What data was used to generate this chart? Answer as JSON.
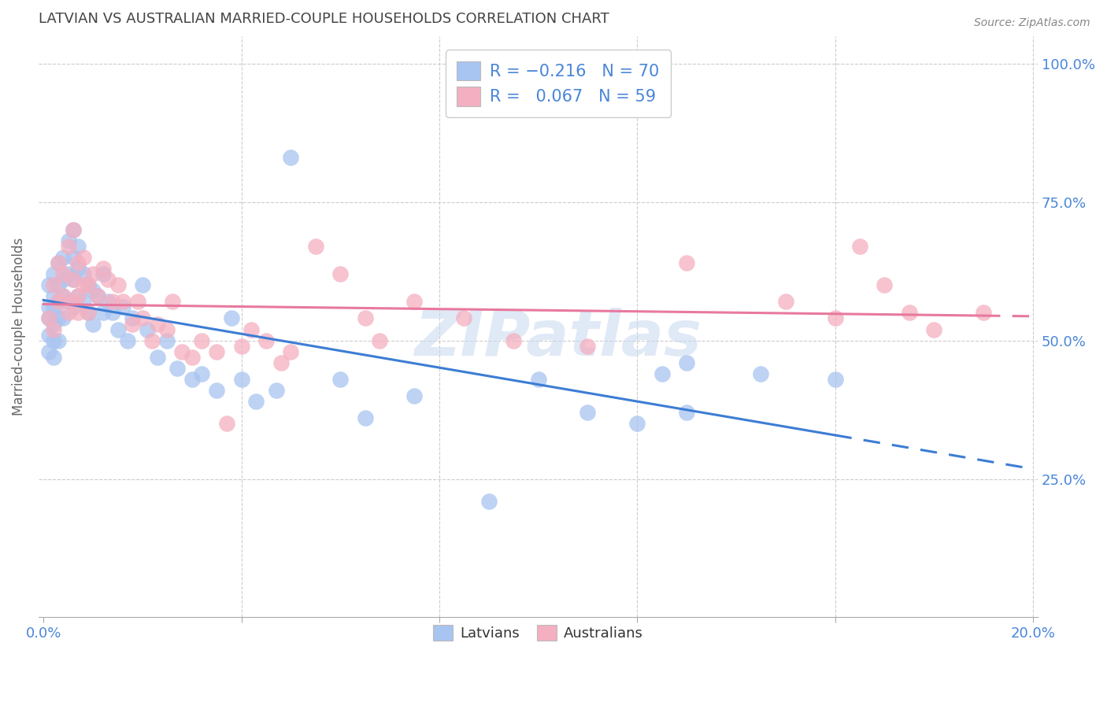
{
  "title": "LATVIAN VS AUSTRALIAN MARRIED-COUPLE HOUSEHOLDS CORRELATION CHART",
  "source": "Source: ZipAtlas.com",
  "ylabel": "Married-couple Households",
  "xlim": [
    0.0,
    0.2
  ],
  "ylim": [
    0.0,
    1.05
  ],
  "yticks": [
    0.0,
    0.25,
    0.5,
    0.75,
    1.0
  ],
  "xticks": [
    0.0,
    0.04,
    0.08,
    0.12,
    0.16,
    0.2
  ],
  "xtick_labels": [
    "0.0%",
    "",
    "",
    "",
    "",
    "20.0%"
  ],
  "ytick_labels_right": [
    "",
    "25.0%",
    "50.0%",
    "75.0%",
    "100.0%"
  ],
  "latvian_R": -0.216,
  "latvian_N": 70,
  "australian_R": 0.067,
  "australian_N": 59,
  "latvian_color": "#a8c4f0",
  "australian_color": "#f4afc0",
  "trend_latvian_color": "#3d7dd4",
  "trend_australian_color": "#e8799e",
  "watermark": "ZIPatlas",
  "watermark_color": "#c8d8f0",
  "background_color": "#ffffff",
  "grid_color": "#cccccc",
  "title_color": "#444444",
  "axis_label_color": "#4a86d8",
  "lat_x": [
    0.001,
    0.001,
    0.001,
    0.001,
    0.001,
    0.002,
    0.002,
    0.002,
    0.002,
    0.002,
    0.002,
    0.003,
    0.003,
    0.003,
    0.003,
    0.003,
    0.004,
    0.004,
    0.004,
    0.004,
    0.005,
    0.005,
    0.005,
    0.006,
    0.006,
    0.006,
    0.006,
    0.007,
    0.007,
    0.007,
    0.008,
    0.008,
    0.009,
    0.009,
    0.01,
    0.01,
    0.011,
    0.012,
    0.012,
    0.013,
    0.014,
    0.015,
    0.016,
    0.017,
    0.018,
    0.02,
    0.021,
    0.023,
    0.025,
    0.027,
    0.03,
    0.032,
    0.035,
    0.038,
    0.04,
    0.043,
    0.047,
    0.05,
    0.06,
    0.065,
    0.075,
    0.09,
    0.1,
    0.11,
    0.12,
    0.125,
    0.13,
    0.13,
    0.145,
    0.16
  ],
  "lat_y": [
    0.6,
    0.56,
    0.54,
    0.51,
    0.48,
    0.62,
    0.58,
    0.56,
    0.53,
    0.5,
    0.47,
    0.64,
    0.6,
    0.57,
    0.54,
    0.5,
    0.65,
    0.61,
    0.58,
    0.54,
    0.68,
    0.62,
    0.57,
    0.7,
    0.65,
    0.61,
    0.56,
    0.67,
    0.63,
    0.58,
    0.62,
    0.57,
    0.6,
    0.55,
    0.59,
    0.53,
    0.58,
    0.62,
    0.55,
    0.57,
    0.55,
    0.52,
    0.56,
    0.5,
    0.54,
    0.6,
    0.52,
    0.47,
    0.5,
    0.45,
    0.43,
    0.44,
    0.41,
    0.54,
    0.43,
    0.39,
    0.41,
    0.83,
    0.43,
    0.36,
    0.4,
    0.21,
    0.43,
    0.37,
    0.35,
    0.44,
    0.46,
    0.37,
    0.44,
    0.43
  ],
  "aus_x": [
    0.001,
    0.002,
    0.002,
    0.003,
    0.003,
    0.004,
    0.004,
    0.005,
    0.005,
    0.006,
    0.006,
    0.006,
    0.007,
    0.007,
    0.007,
    0.008,
    0.008,
    0.009,
    0.009,
    0.01,
    0.011,
    0.012,
    0.013,
    0.014,
    0.015,
    0.016,
    0.018,
    0.019,
    0.02,
    0.022,
    0.023,
    0.025,
    0.026,
    0.028,
    0.03,
    0.032,
    0.035,
    0.037,
    0.04,
    0.042,
    0.045,
    0.048,
    0.05,
    0.055,
    0.06,
    0.065,
    0.068,
    0.075,
    0.085,
    0.095,
    0.11,
    0.13,
    0.15,
    0.16,
    0.165,
    0.17,
    0.175,
    0.18,
    0.19
  ],
  "aus_y": [
    0.54,
    0.6,
    0.52,
    0.64,
    0.57,
    0.58,
    0.62,
    0.67,
    0.55,
    0.61,
    0.7,
    0.57,
    0.64,
    0.58,
    0.55,
    0.65,
    0.6,
    0.6,
    0.55,
    0.62,
    0.58,
    0.63,
    0.61,
    0.57,
    0.6,
    0.57,
    0.53,
    0.57,
    0.54,
    0.5,
    0.53,
    0.52,
    0.57,
    0.48,
    0.47,
    0.5,
    0.48,
    0.35,
    0.49,
    0.52,
    0.5,
    0.46,
    0.48,
    0.67,
    0.62,
    0.54,
    0.5,
    0.57,
    0.54,
    0.5,
    0.49,
    0.64,
    0.57,
    0.54,
    0.67,
    0.6,
    0.55,
    0.52,
    0.55
  ]
}
